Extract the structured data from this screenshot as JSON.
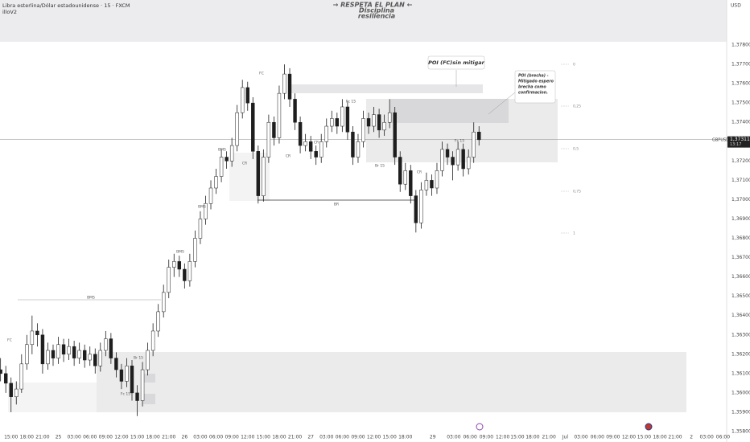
{
  "chart_data": {
    "type": "candlestick",
    "title": "Libra esterlina/Dólar estadounidense · 15 · FXCM",
    "subtitle": "illoV2",
    "banner": [
      "→ RESPETA  EL PLAN ←",
      "Disciplina",
      "resiliencia"
    ],
    "y_axis_label": "USD",
    "symbol": "GBPUSD",
    "last_price": {
      "value": 1.37311,
      "label": "1,37311"
    },
    "countdown": "13:17",
    "ylim": [
      1.358,
      1.38033
    ],
    "yticks": [
      {
        "value": 1.378,
        "label": "1,37800"
      },
      {
        "value": 1.377,
        "label": "1,37700"
      },
      {
        "value": 1.376,
        "label": "1,37600"
      },
      {
        "value": 1.375,
        "label": "1,37500"
      },
      {
        "value": 1.374,
        "label": "1,37400"
      },
      {
        "value": 1.373,
        "label": "1,37300"
      },
      {
        "value": 1.372,
        "label": "1,37200"
      },
      {
        "value": 1.371,
        "label": "1,37100"
      },
      {
        "value": 1.37,
        "label": "1,37000"
      },
      {
        "value": 1.369,
        "label": "1,36900"
      },
      {
        "value": 1.368,
        "label": "1,36800"
      },
      {
        "value": 1.367,
        "label": "1,36700"
      },
      {
        "value": 1.366,
        "label": "1,36600"
      },
      {
        "value": 1.365,
        "label": "1,36500"
      },
      {
        "value": 1.364,
        "label": "1,36400"
      },
      {
        "value": 1.363,
        "label": "1,36300"
      },
      {
        "value": 1.362,
        "label": "1,36200"
      },
      {
        "value": 1.361,
        "label": "1,36100"
      },
      {
        "value": 1.36,
        "label": "1,36000"
      },
      {
        "value": 1.359,
        "label": "1,35900"
      },
      {
        "value": 1.358,
        "label": "1,35800"
      }
    ],
    "xlim": [
      -2.1,
      136.1
    ],
    "xticks": [
      {
        "value": 0,
        "label": "15:00"
      },
      {
        "value": 3,
        "label": "18:00"
      },
      {
        "value": 6,
        "label": "21:00"
      },
      {
        "value": 9,
        "label": "25"
      },
      {
        "value": 12,
        "label": "03:00"
      },
      {
        "value": 15,
        "label": "06:00"
      },
      {
        "value": 18,
        "label": "09:00"
      },
      {
        "value": 21,
        "label": "12:00"
      },
      {
        "value": 24,
        "label": "15:00"
      },
      {
        "value": 27,
        "label": "18:00"
      },
      {
        "value": 30,
        "label": "21:00"
      },
      {
        "value": 33,
        "label": "26"
      },
      {
        "value": 36,
        "label": "03:00"
      },
      {
        "value": 39,
        "label": "06:00"
      },
      {
        "value": 42,
        "label": "09:00"
      },
      {
        "value": 45,
        "label": "12:00"
      },
      {
        "value": 48,
        "label": "15:00"
      },
      {
        "value": 51,
        "label": "18:00"
      },
      {
        "value": 54,
        "label": "21:00"
      },
      {
        "value": 57,
        "label": "27"
      },
      {
        "value": 60,
        "label": "03:00"
      },
      {
        "value": 63,
        "label": "06:00"
      },
      {
        "value": 66,
        "label": "09:00"
      },
      {
        "value": 69,
        "label": "12:00"
      },
      {
        "value": 72,
        "label": "15:00"
      },
      {
        "value": 75,
        "label": "18:00"
      },
      {
        "value": 80.2,
        "label": "29"
      },
      {
        "value": 84.2,
        "label": "03:00"
      },
      {
        "value": 87.3,
        "label": "06:00"
      },
      {
        "value": 90.4,
        "label": "09:00"
      },
      {
        "value": 93.5,
        "label": "12:00"
      },
      {
        "value": 96.3,
        "label": "15:00"
      },
      {
        "value": 99.2,
        "label": "18:00"
      },
      {
        "value": 102.3,
        "label": "21:00"
      },
      {
        "value": 105.4,
        "label": "Jul"
      },
      {
        "value": 108.4,
        "label": "03:00"
      },
      {
        "value": 111.5,
        "label": "06:00"
      },
      {
        "value": 114.5,
        "label": "09:00"
      },
      {
        "value": 117.5,
        "label": "12:00"
      },
      {
        "value": 120.4,
        "label": "15:00"
      },
      {
        "value": 123.4,
        "label": "18:00"
      },
      {
        "value": 126.3,
        "label": "21:00"
      },
      {
        "value": 129.4,
        "label": "2"
      },
      {
        "value": 132.3,
        "label": "03:00"
      },
      {
        "value": 135.4,
        "label": "06:00"
      }
    ],
    "x": [
      -2,
      -1,
      0,
      1,
      2,
      3,
      4,
      5,
      6,
      7,
      8,
      9,
      10,
      11,
      12,
      13,
      14,
      15,
      16,
      17,
      18,
      19,
      20,
      21,
      22,
      23,
      24,
      25,
      26,
      27,
      28,
      29,
      30,
      31,
      32,
      33,
      34,
      35,
      36,
      37,
      38,
      39,
      40,
      41,
      42,
      43,
      44,
      45,
      46,
      47,
      48,
      49,
      50,
      51,
      52,
      53,
      54,
      55,
      56,
      57,
      58,
      59,
      60,
      61,
      62,
      63,
      64,
      65,
      66,
      67,
      68,
      69,
      70,
      71,
      72,
      73,
      74,
      75,
      76,
      77,
      78,
      79,
      80,
      81,
      82,
      83,
      84,
      85,
      86,
      87,
      88,
      89
    ],
    "ohlc": [
      [
        1.3612,
        1.3618,
        1.3606,
        1.361
      ],
      [
        1.361,
        1.3614,
        1.36,
        1.3605
      ],
      [
        1.3605,
        1.3608,
        1.359,
        1.3598
      ],
      [
        1.3598,
        1.3606,
        1.3594,
        1.3602
      ],
      [
        1.3602,
        1.362,
        1.36,
        1.3615
      ],
      [
        1.3615,
        1.363,
        1.3612,
        1.3625
      ],
      [
        1.3625,
        1.364,
        1.362,
        1.3632
      ],
      [
        1.3632,
        1.3636,
        1.3624,
        1.363
      ],
      [
        1.363,
        1.3633,
        1.361,
        1.3615
      ],
      [
        1.3615,
        1.3626,
        1.3612,
        1.3622
      ],
      [
        1.3622,
        1.3625,
        1.3614,
        1.3618
      ],
      [
        1.3618,
        1.3629,
        1.3615,
        1.3625
      ],
      [
        1.3625,
        1.3628,
        1.3616,
        1.362
      ],
      [
        1.362,
        1.3628,
        1.3617,
        1.3624
      ],
      [
        1.3624,
        1.3627,
        1.3614,
        1.3618
      ],
      [
        1.3618,
        1.3626,
        1.3615,
        1.3622
      ],
      [
        1.3622,
        1.3625,
        1.3613,
        1.3617
      ],
      [
        1.3617,
        1.3624,
        1.3614,
        1.362
      ],
      [
        1.362,
        1.3623,
        1.361,
        1.3614
      ],
      [
        1.3614,
        1.3626,
        1.3611,
        1.3622
      ],
      [
        1.3622,
        1.3632,
        1.3619,
        1.3628
      ],
      [
        1.3628,
        1.3631,
        1.3615,
        1.3618
      ],
      [
        1.3618,
        1.3621,
        1.3608,
        1.3612
      ],
      [
        1.3612,
        1.3615,
        1.3602,
        1.3606
      ],
      [
        1.3606,
        1.3618,
        1.3603,
        1.3614
      ],
      [
        1.3614,
        1.3617,
        1.3596,
        1.36
      ],
      [
        1.36,
        1.3604,
        1.3588,
        1.3596
      ],
      [
        1.3596,
        1.3616,
        1.3593,
        1.3612
      ],
      [
        1.3612,
        1.3626,
        1.3609,
        1.3622
      ],
      [
        1.3622,
        1.3636,
        1.3619,
        1.3632
      ],
      [
        1.3632,
        1.3646,
        1.3629,
        1.3642
      ],
      [
        1.3642,
        1.3656,
        1.3639,
        1.3652
      ],
      [
        1.3652,
        1.3669,
        1.3649,
        1.3665
      ],
      [
        1.3665,
        1.3672,
        1.366,
        1.3668
      ],
      [
        1.3668,
        1.3671,
        1.366,
        1.3664
      ],
      [
        1.3664,
        1.3667,
        1.3654,
        1.3658
      ],
      [
        1.3658,
        1.3672,
        1.3655,
        1.3668
      ],
      [
        1.3668,
        1.3684,
        1.3665,
        1.368
      ],
      [
        1.368,
        1.3694,
        1.3677,
        1.369
      ],
      [
        1.369,
        1.3702,
        1.3687,
        1.3698
      ],
      [
        1.3698,
        1.371,
        1.3695,
        1.3706
      ],
      [
        1.3706,
        1.3716,
        1.3703,
        1.3712
      ],
      [
        1.3712,
        1.3726,
        1.3709,
        1.3722
      ],
      [
        1.3722,
        1.3725,
        1.3716,
        1.372
      ],
      [
        1.372,
        1.3732,
        1.3717,
        1.3728
      ],
      [
        1.3728,
        1.3749,
        1.3725,
        1.3745
      ],
      [
        1.3745,
        1.3762,
        1.3742,
        1.3758
      ],
      [
        1.3758,
        1.3761,
        1.3746,
        1.375
      ],
      [
        1.375,
        1.3753,
        1.3721,
        1.3725
      ],
      [
        1.3725,
        1.3728,
        1.3698,
        1.3702
      ],
      [
        1.3702,
        1.3726,
        1.3699,
        1.3722
      ],
      [
        1.3722,
        1.3744,
        1.3719,
        1.374
      ],
      [
        1.374,
        1.3743,
        1.3728,
        1.3732
      ],
      [
        1.3732,
        1.3759,
        1.3729,
        1.3755
      ],
      [
        1.3755,
        1.377,
        1.3752,
        1.3765
      ],
      [
        1.3765,
        1.3768,
        1.3748,
        1.3752
      ],
      [
        1.3752,
        1.3755,
        1.3736,
        1.374
      ],
      [
        1.374,
        1.3743,
        1.3724,
        1.3728
      ],
      [
        1.3728,
        1.3734,
        1.3725,
        1.373
      ],
      [
        1.373,
        1.3733,
        1.3721,
        1.3725
      ],
      [
        1.3725,
        1.3728,
        1.3718,
        1.3722
      ],
      [
        1.3722,
        1.3734,
        1.3719,
        1.373
      ],
      [
        1.373,
        1.3742,
        1.3727,
        1.3738
      ],
      [
        1.3738,
        1.3746,
        1.3735,
        1.3742
      ],
      [
        1.3742,
        1.3745,
        1.3734,
        1.3738
      ],
      [
        1.3738,
        1.3752,
        1.3735,
        1.3748
      ],
      [
        1.3748,
        1.3751,
        1.3731,
        1.3735
      ],
      [
        1.3735,
        1.3738,
        1.3718,
        1.3722
      ],
      [
        1.3722,
        1.3734,
        1.3719,
        1.373
      ],
      [
        1.373,
        1.3746,
        1.3727,
        1.3742
      ],
      [
        1.3742,
        1.3745,
        1.3734,
        1.3738
      ],
      [
        1.3738,
        1.3748,
        1.3735,
        1.3744
      ],
      [
        1.3744,
        1.3747,
        1.3732,
        1.3736
      ],
      [
        1.3736,
        1.3744,
        1.3733,
        1.374
      ],
      [
        1.374,
        1.3752,
        1.3737,
        1.3745
      ],
      [
        1.3745,
        1.3748,
        1.3718,
        1.3722
      ],
      [
        1.3722,
        1.3725,
        1.3704,
        1.3708
      ],
      [
        1.3708,
        1.3719,
        1.3705,
        1.3715
      ],
      [
        1.3715,
        1.3718,
        1.3698,
        1.3702
      ],
      [
        1.3702,
        1.3705,
        1.3683,
        1.3688
      ],
      [
        1.3688,
        1.3709,
        1.3685,
        1.3705
      ],
      [
        1.3705,
        1.3714,
        1.3702,
        1.371
      ],
      [
        1.371,
        1.3713,
        1.3702,
        1.3706
      ],
      [
        1.3706,
        1.3719,
        1.3703,
        1.3715
      ],
      [
        1.3715,
        1.373,
        1.3712,
        1.3726
      ],
      [
        1.3726,
        1.3729,
        1.3718,
        1.3722
      ],
      [
        1.3722,
        1.3725,
        1.371,
        1.3718
      ],
      [
        1.3718,
        1.373,
        1.3715,
        1.3726
      ],
      [
        1.3726,
        1.3729,
        1.3712,
        1.3716
      ],
      [
        1.3716,
        1.3726,
        1.3713,
        1.3722
      ],
      [
        1.3722,
        1.374,
        1.3719,
        1.3735
      ],
      [
        1.3735,
        1.3738,
        1.3728,
        1.3731
      ]
    ],
    "up_color": "#ffffff",
    "down_color": "#1e1e1e",
    "outline_color": "#1e1e1e",
    "annotations": [
      "FC",
      "BMS",
      "Br 15",
      "Fc 15",
      "BMS",
      "BMS",
      "BMS",
      "FC",
      "CR",
      "CR",
      "CR",
      "Fc 15",
      "Br 15",
      "CR",
      "Fc 15",
      "BR"
    ],
    "fib_levels": [
      "0",
      "0,25",
      "0,5",
      "0,75",
      "1"
    ],
    "callouts": [
      [
        "POI (FC)sin mitigar"
      ],
      [
        "POI (brecha) -",
        "Mitigado espero",
        "brecha  como",
        "confirmacion."
      ]
    ]
  }
}
